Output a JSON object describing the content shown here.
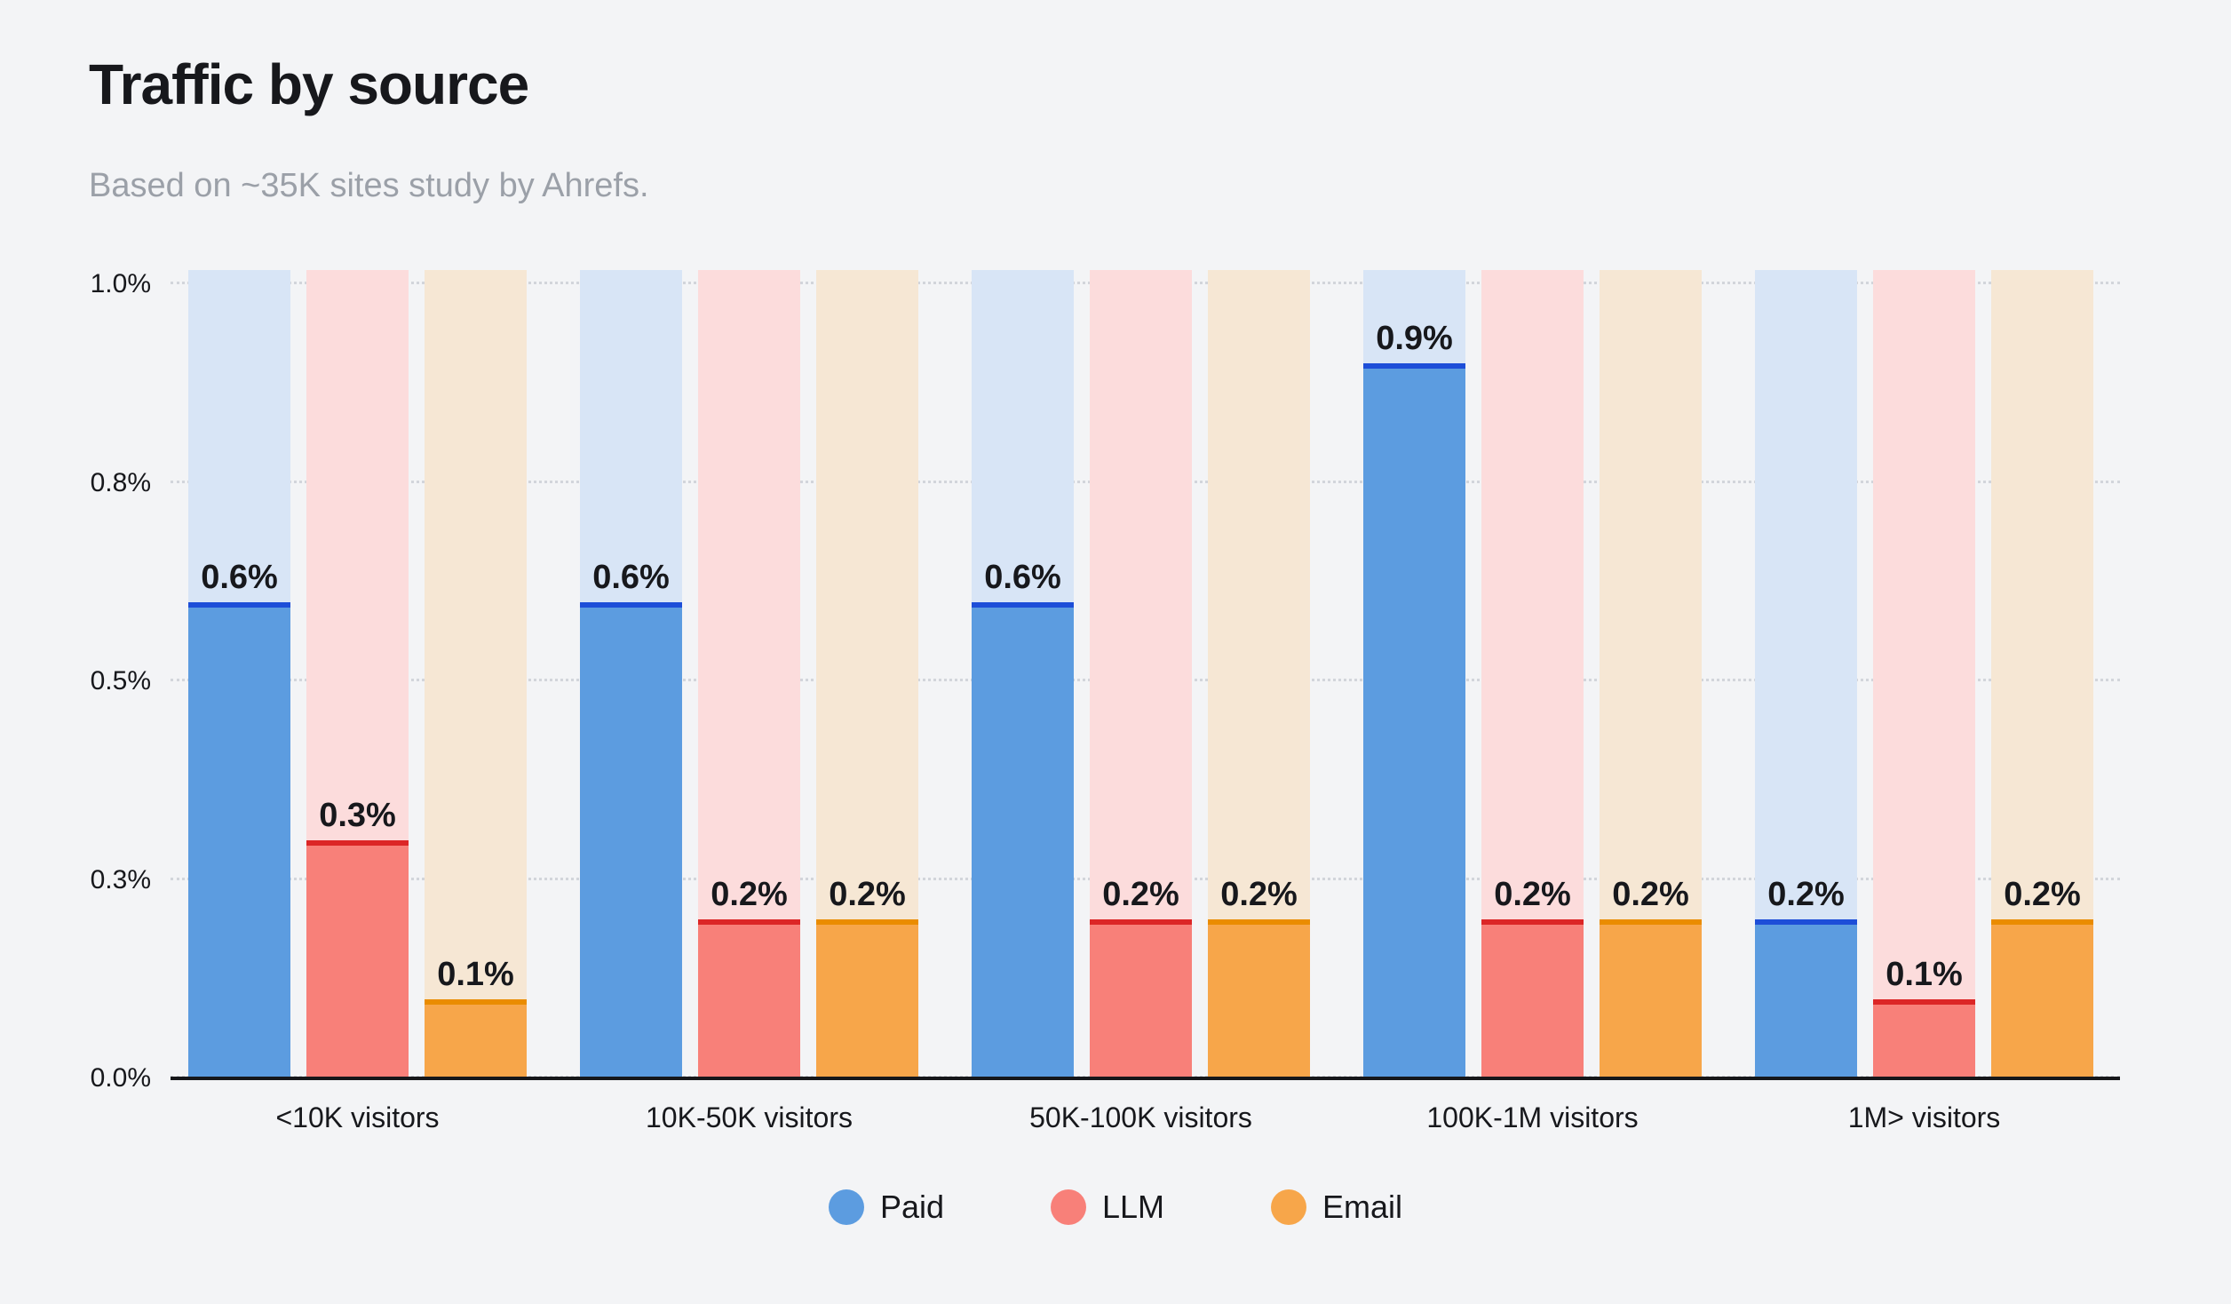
{
  "page": {
    "background_color": "#f3f4f6"
  },
  "header": {
    "title": "Traffic by source",
    "subtitle": "Based on ~35K sites study by Ahrefs."
  },
  "chart_data": {
    "type": "bar",
    "title": "Traffic by source",
    "subtitle": "Based on ~35K sites study by Ahrefs.",
    "categories": [
      "<10K visitors",
      "10K-50K visitors",
      "50K-100K visitors",
      "100K-1M visitors",
      "1M> visitors"
    ],
    "series": [
      {
        "name": "Paid",
        "color": "#5c9ce0",
        "edge_color": "#1d4ed8",
        "track_color": "#d8e5f6",
        "values": [
          0.6,
          0.6,
          0.6,
          0.9,
          0.2
        ],
        "labels": [
          "0.6%",
          "0.6%",
          "0.6%",
          "0.9%",
          "0.2%"
        ]
      },
      {
        "name": "LLM",
        "color": "#f88079",
        "edge_color": "#dc2626",
        "track_color": "#fcdcdc",
        "values": [
          0.3,
          0.2,
          0.2,
          0.2,
          0.1
        ],
        "labels": [
          "0.3%",
          "0.2%",
          "0.2%",
          "0.2%",
          "0.1%"
        ]
      },
      {
        "name": "Email",
        "color": "#f7a64a",
        "edge_color": "#ea8c00",
        "track_color": "#f6e7d4",
        "values": [
          0.1,
          0.2,
          0.2,
          0.2,
          0.2
        ],
        "labels": [
          "0.1%",
          "0.2%",
          "0.2%",
          "0.2%",
          "0.2%"
        ]
      }
    ],
    "ylim": [
      0,
      1.0
    ],
    "yticks": [
      {
        "value": 0.0,
        "label": "0.0%"
      },
      {
        "value": 0.25,
        "label": "0.3%"
      },
      {
        "value": 0.5,
        "label": "0.5%"
      },
      {
        "value": 0.75,
        "label": "0.8%"
      },
      {
        "value": 1.0,
        "label": "1.0%"
      }
    ],
    "grid": "horizontal dotted",
    "legend": {
      "position": "bottom",
      "items": [
        "Paid",
        "LLM",
        "Email"
      ]
    }
  }
}
